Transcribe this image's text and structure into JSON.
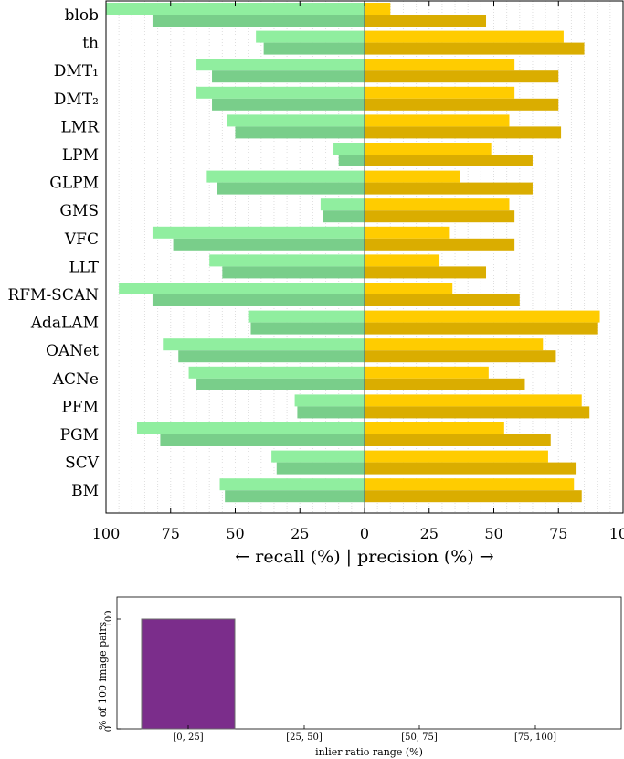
{
  "chart_data": [
    {
      "type": "bar",
      "orientation": "horizontal-diverging",
      "xlabel": "← recall (%) | precision (%) →",
      "x_ticks": [
        "100",
        "75",
        "50",
        "25",
        "0",
        "25",
        "50",
        "75",
        "100"
      ],
      "xlim": [
        -100,
        100
      ],
      "grid": "vertical dotted",
      "categories": [
        "blob",
        "th",
        "DMT₁",
        "DMT₂",
        "LMR",
        "LPM",
        "GLPM",
        "GMS",
        "VFC",
        "LLT",
        "RFM-SCAN",
        "AdaLAM",
        "OANet",
        "ACNe",
        "PFM",
        "PGM",
        "SCV",
        "BM"
      ],
      "series": [
        {
          "key": "recall_light",
          "side": "left",
          "color": "#90EE9F",
          "values": [
            100,
            42,
            65,
            65,
            53,
            12,
            61,
            17,
            82,
            60,
            95,
            45,
            78,
            68,
            27,
            88,
            36,
            56
          ]
        },
        {
          "key": "recall_dark",
          "side": "left",
          "color": "#79CE8A",
          "values": [
            82,
            39,
            59,
            59,
            50,
            10,
            57,
            16,
            74,
            55,
            82,
            44,
            72,
            65,
            26,
            79,
            34,
            54
          ]
        },
        {
          "key": "precision_light",
          "side": "right",
          "color": "#FFCC00",
          "values": [
            10,
            77,
            58,
            58,
            56,
            49,
            37,
            56,
            33,
            29,
            34,
            91,
            69,
            48,
            84,
            54,
            71,
            81
          ]
        },
        {
          "key": "precision_dark",
          "side": "right",
          "color": "#DAAD00",
          "values": [
            47,
            85,
            75,
            75,
            76,
            65,
            65,
            58,
            58,
            47,
            60,
            90,
            74,
            62,
            87,
            72,
            82,
            84
          ]
        }
      ]
    },
    {
      "type": "bar",
      "categories": [
        "[0, 25]",
        "[25, 50]",
        "[50, 75]",
        "[75, 100]"
      ],
      "values": [
        100,
        0,
        0,
        0
      ],
      "ylim": [
        0,
        120
      ],
      "y_ticks": [
        "0",
        "100"
      ],
      "xlabel": "inlier ratio range (%)",
      "ylabel": "% of 100 image pairs",
      "color": "#7B2D8B"
    }
  ]
}
